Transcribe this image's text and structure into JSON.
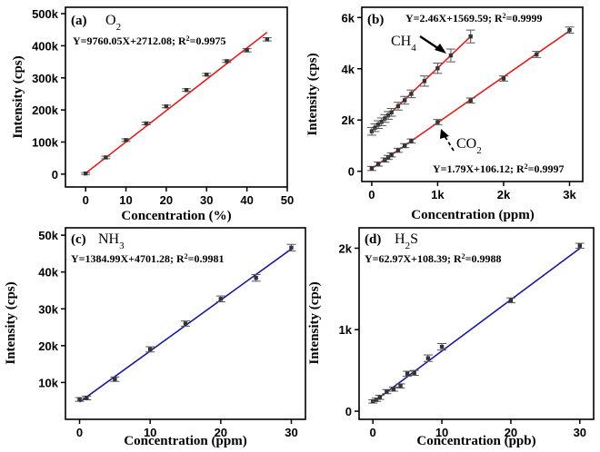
{
  "chart_data": [
    {
      "panel": "(a)",
      "type": "scatter",
      "species": "O2",
      "equation": "Y=9760.05X+2712.08; R²=0.9975",
      "xlabel": "Concentration (%)",
      "ylabel": "Intensity (cps)",
      "xlim": [
        -5,
        50
      ],
      "ylim": [
        -40000,
        520000
      ],
      "xticks": [
        0,
        10,
        20,
        30,
        40,
        50
      ],
      "xtick_labels": [
        "0",
        "10",
        "20",
        "30",
        "40",
        "50"
      ],
      "yticks": [
        0,
        100000,
        200000,
        300000,
        400000,
        500000
      ],
      "ytick_labels": [
        "0",
        "100k",
        "200k",
        "300k",
        "400k",
        "500k"
      ],
      "fit_color": "#e02020",
      "series": [
        {
          "x": [
            0,
            5,
            10,
            15,
            20,
            25,
            30,
            35,
            40,
            45
          ],
          "y": [
            2000,
            52000,
            106000,
            158000,
            211000,
            262000,
            310000,
            352000,
            386000,
            420000
          ],
          "err": [
            3000,
            4000,
            4000,
            4000,
            4000,
            4000,
            4000,
            4000,
            5000,
            5000
          ],
          "fit": {
            "slope": 9760.05,
            "intercept": 2712.08,
            "x_range": [
              0,
              45
            ]
          }
        }
      ]
    },
    {
      "panel": "(b)",
      "type": "scatter",
      "xlabel": "Concentration (ppm)",
      "ylabel": "Intensity (cps)",
      "xlim": [
        -150,
        3200
      ],
      "ylim": [
        -400,
        6400
      ],
      "xticks": [
        0,
        1000,
        2000,
        3000
      ],
      "xtick_labels": [
        "0",
        "1k",
        "2k",
        "3k"
      ],
      "yticks": [
        0,
        2000,
        4000,
        6000
      ],
      "ytick_labels": [
        "0",
        "2k",
        "4k",
        "6k"
      ],
      "fit_color": "#e02020",
      "series": [
        {
          "name": "CH4",
          "equation": "Y=2.46X+1569.59; R²=0.9999",
          "x": [
            0,
            50,
            100,
            150,
            200,
            250,
            300,
            400,
            500,
            600,
            800,
            1000,
            1200,
            1500
          ],
          "y": [
            1560,
            1700,
            1820,
            1930,
            2060,
            2180,
            2300,
            2540,
            2770,
            3020,
            3520,
            4020,
            4520,
            5260
          ],
          "err": [
            150,
            150,
            150,
            150,
            150,
            150,
            150,
            150,
            150,
            150,
            200,
            200,
            250,
            250
          ],
          "fit": {
            "slope": 2.46,
            "intercept": 1569.59,
            "x_range": [
              0,
              1500
            ]
          }
        },
        {
          "name": "CO2",
          "equation": "Y=1.79X+106.12; R²=0.9997",
          "x": [
            0,
            100,
            200,
            250,
            300,
            400,
            500,
            600,
            1000,
            1500,
            2000,
            2500,
            3000
          ],
          "y": [
            110,
            280,
            440,
            540,
            640,
            820,
            1000,
            1180,
            1920,
            2760,
            3620,
            4560,
            5510
          ],
          "err": [
            80,
            80,
            80,
            80,
            80,
            80,
            80,
            80,
            100,
            100,
            100,
            120,
            120
          ],
          "fit": {
            "slope": 1.79,
            "intercept": 106.12,
            "x_range": [
              0,
              3000
            ]
          }
        }
      ]
    },
    {
      "panel": "(c)",
      "type": "scatter",
      "species": "NH3",
      "equation": "Y=1384.99X+4701.28; R²=0.9981",
      "xlabel": "Concentration (ppm)",
      "ylabel": "Intensity (cps)",
      "xlim": [
        -2,
        32
      ],
      "ylim": [
        0,
        52000
      ],
      "xticks": [
        0,
        10,
        20,
        30
      ],
      "xtick_labels": [
        "0",
        "10",
        "20",
        "30"
      ],
      "yticks": [
        10000,
        20000,
        30000,
        40000,
        50000
      ],
      "ytick_labels": [
        "10k",
        "20k",
        "30k",
        "40k",
        "50k"
      ],
      "fit_color": "#1a1a9c",
      "series": [
        {
          "x": [
            0,
            1,
            5,
            10,
            15,
            20,
            25,
            30
          ],
          "y": [
            5400,
            5800,
            10900,
            19000,
            26000,
            32700,
            38400,
            46600
          ],
          "err": [
            500,
            500,
            600,
            700,
            700,
            800,
            900,
            900
          ],
          "fit": {
            "slope": 1384.99,
            "intercept": 4701.28,
            "x_range": [
              0,
              30
            ]
          }
        }
      ]
    },
    {
      "panel": "(d)",
      "type": "scatter",
      "species": "H2S",
      "equation": "Y=62.97X+108.39; R²=0.9988",
      "xlabel": "Concentration (ppb)",
      "ylabel": "Intensity (cps)",
      "xlim": [
        -2,
        32
      ],
      "ylim": [
        -100,
        2250
      ],
      "xticks": [
        0,
        10,
        20,
        30
      ],
      "xtick_labels": [
        "0",
        "10",
        "20",
        "30"
      ],
      "yticks": [
        0,
        1000,
        2000
      ],
      "ytick_labels": [
        "0",
        "1k",
        "2k"
      ],
      "fit_color": "#1a1a9c",
      "series": [
        {
          "x": [
            0,
            0.5,
            1,
            2,
            3,
            4,
            5,
            6,
            8,
            10,
            20,
            30
          ],
          "y": [
            120,
            140,
            170,
            240,
            270,
            310,
            460,
            470,
            650,
            790,
            1360,
            2030
          ],
          "err": [
            20,
            20,
            25,
            25,
            25,
            25,
            30,
            30,
            40,
            40,
            30,
            30
          ],
          "fit": {
            "slope": 62.97,
            "intercept": 108.39,
            "x_range": [
              0,
              30
            ]
          }
        }
      ]
    }
  ]
}
